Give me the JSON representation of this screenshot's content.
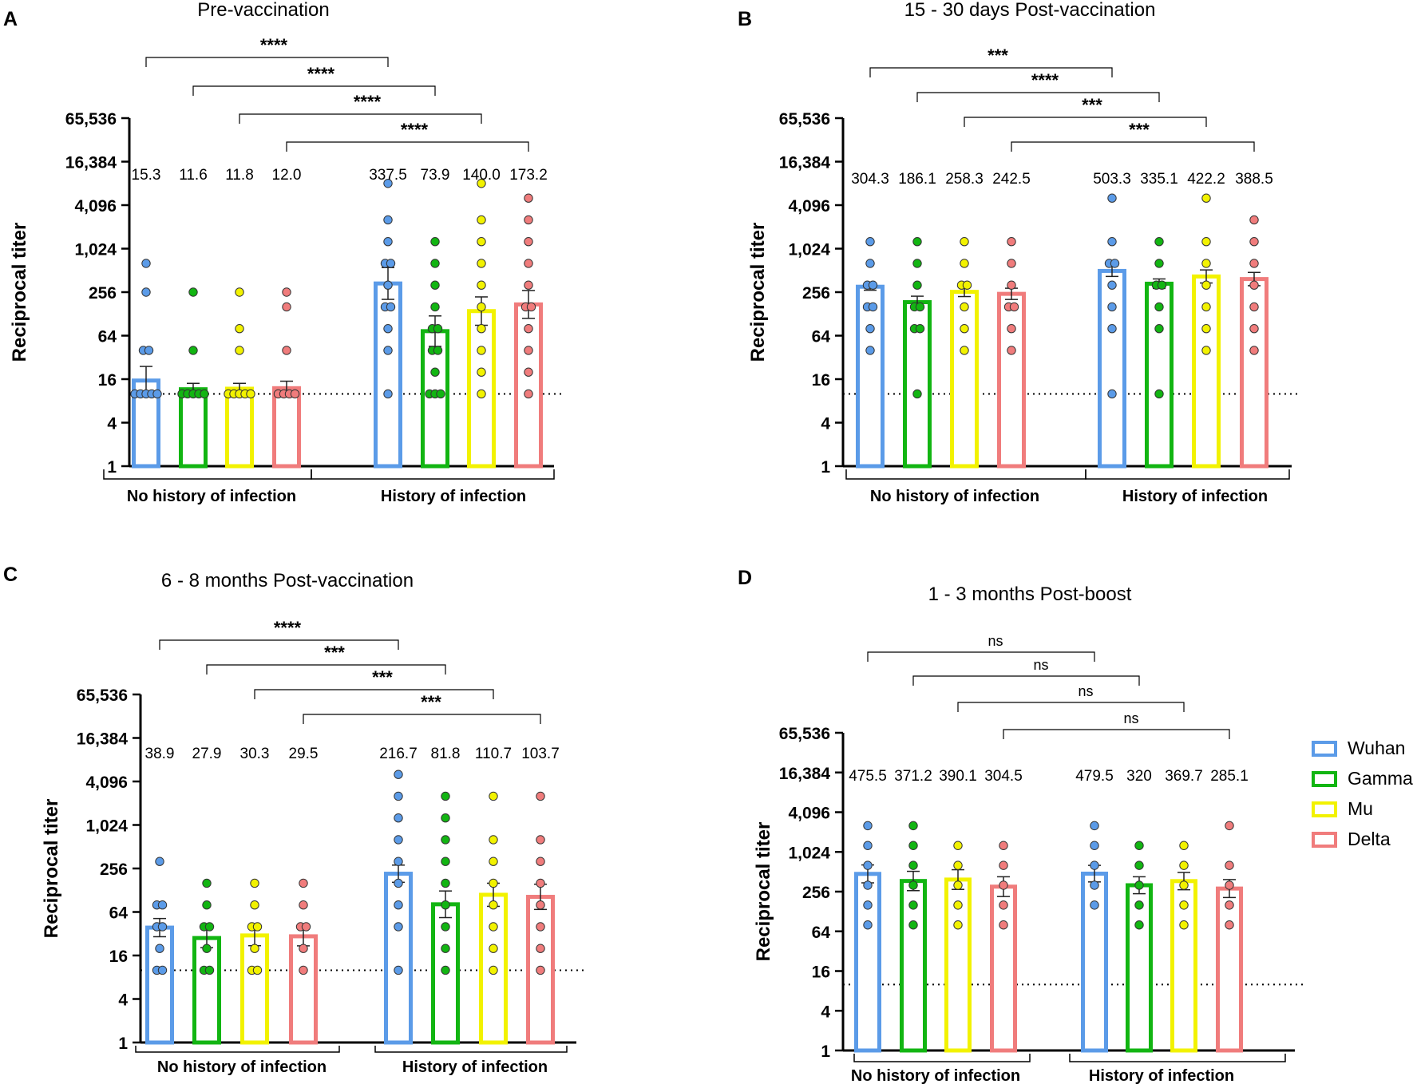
{
  "figure": {
    "panel_labels": [
      "A",
      "B",
      "C",
      "D"
    ],
    "legend": [
      {
        "label": "Wuhan",
        "color": "#5b9be8"
      },
      {
        "label": "Gamma",
        "color": "#12b512"
      },
      {
        "label": "Mu",
        "color": "#f2f200"
      },
      {
        "label": "Delta",
        "color": "#f07c7c"
      }
    ]
  },
  "chart_data": [
    {
      "type": "bar",
      "title": "Pre-vaccination",
      "ylabel": "Reciprocal titer",
      "yscale": "log2",
      "ylim": [
        1,
        65536
      ],
      "yticks": [
        "1",
        "4",
        "16",
        "64",
        "256",
        "1,024",
        "4,096",
        "16,384",
        "65,536"
      ],
      "groups": [
        "No history of infection",
        "History of infection"
      ],
      "series": [
        "Wuhan",
        "Gamma",
        "Mu",
        "Delta"
      ],
      "means": [
        [
          15.3,
          11.6,
          11.8,
          12.0
        ],
        [
          337.5,
          73.9,
          140.0,
          173.2
        ]
      ],
      "mean_labels": [
        [
          "15.3",
          "11.6",
          "11.8",
          "12.0"
        ],
        [
          "337.5",
          "73.9",
          "140.0",
          "173.2"
        ]
      ],
      "error_upper": [
        [
          24,
          14,
          14,
          15
        ],
        [
          560,
          120,
          220,
          270
        ]
      ],
      "points": [
        [
          [
            640,
            256,
            40,
            40,
            10,
            10,
            10,
            10,
            10
          ],
          [
            256,
            40,
            10,
            10,
            10,
            10,
            10
          ],
          [
            256,
            80,
            40,
            10,
            10,
            10,
            10,
            10
          ],
          [
            256,
            160,
            40,
            10,
            10,
            10,
            10
          ]
        ],
        [
          [
            8192,
            2560,
            1280,
            640,
            640,
            320,
            160,
            160,
            80,
            40,
            10
          ],
          [
            1280,
            640,
            320,
            160,
            80,
            80,
            40,
            40,
            20,
            10,
            10,
            10
          ],
          [
            8192,
            2560,
            1280,
            640,
            320,
            160,
            80,
            40,
            20,
            10
          ],
          [
            5120,
            2560,
            1280,
            640,
            320,
            160,
            160,
            80,
            40,
            20,
            10
          ]
        ]
      ],
      "lod": 10,
      "comparisons": [
        "****",
        "****",
        "****",
        "****"
      ]
    },
    {
      "type": "bar",
      "title": "15 - 30 days Post-vaccination",
      "ylabel": "Reciprocal titer",
      "yscale": "log2",
      "ylim": [
        1,
        65536
      ],
      "yticks": [
        "1",
        "4",
        "16",
        "64",
        "256",
        "1,024",
        "4,096",
        "16,384",
        "65,536"
      ],
      "groups": [
        "No history of infection",
        "History of infection"
      ],
      "series": [
        "Wuhan",
        "Gamma",
        "Mu",
        "Delta"
      ],
      "means": [
        [
          304.3,
          186.1,
          258.3,
          242.5
        ],
        [
          503.3,
          335.1,
          422.2,
          388.5
        ]
      ],
      "mean_labels": [
        [
          "304.3",
          "186.1",
          "258.3",
          "242.5"
        ],
        [
          "503.3",
          "335.1",
          "422.2",
          "388.5"
        ]
      ],
      "error_upper": [
        [
          340,
          225,
          300,
          290
        ],
        [
          600,
          390,
          520,
          480
        ]
      ],
      "points": [
        [
          [
            1280,
            640,
            320,
            320,
            160,
            160,
            80,
            40
          ],
          [
            1280,
            640,
            320,
            160,
            160,
            80,
            80,
            10
          ],
          [
            1280,
            640,
            320,
            320,
            160,
            80,
            40
          ],
          [
            1280,
            640,
            320,
            160,
            160,
            80,
            40
          ]
        ],
        [
          [
            5120,
            1280,
            640,
            640,
            320,
            160,
            80,
            10
          ],
          [
            1280,
            640,
            320,
            320,
            160,
            80,
            10
          ],
          [
            5120,
            1280,
            640,
            320,
            160,
            80,
            40
          ],
          [
            2560,
            1280,
            640,
            320,
            160,
            80,
            40
          ]
        ]
      ],
      "lod": 10,
      "comparisons": [
        "***",
        "****",
        "***",
        "***"
      ]
    },
    {
      "type": "bar",
      "title": "6 - 8 months Post-vaccination",
      "ylabel": "Reciprocal titer",
      "yscale": "log2",
      "ylim": [
        1,
        65536
      ],
      "yticks": [
        "1",
        "4",
        "16",
        "64",
        "256",
        "1,024",
        "4,096",
        "16,384",
        "65,536"
      ],
      "groups": [
        "No history of infection",
        "History of infection"
      ],
      "series": [
        "Wuhan",
        "Gamma",
        "Mu",
        "Delta"
      ],
      "means": [
        [
          38.9,
          27.9,
          30.3,
          29.5
        ],
        [
          216.7,
          81.8,
          110.7,
          103.7
        ]
      ],
      "mean_labels": [
        [
          "38.9",
          "27.9",
          "30.3",
          "29.5"
        ],
        [
          "216.7",
          "81.8",
          "110.7",
          "103.7"
        ]
      ],
      "error_upper": [
        [
          52,
          38,
          42,
          40
        ],
        [
          285,
          125,
          160,
          155
        ]
      ],
      "points": [
        [
          [
            320,
            80,
            80,
            40,
            40,
            20,
            10,
            10
          ],
          [
            160,
            80,
            40,
            40,
            20,
            10,
            10
          ],
          [
            160,
            80,
            40,
            40,
            20,
            10,
            10
          ],
          [
            160,
            80,
            40,
            40,
            20,
            10
          ]
        ],
        [
          [
            5120,
            2560,
            1280,
            640,
            320,
            160,
            80,
            40,
            10
          ],
          [
            2560,
            1280,
            640,
            320,
            160,
            80,
            40,
            20,
            10
          ],
          [
            2560,
            640,
            320,
            160,
            80,
            40,
            20,
            10
          ],
          [
            2560,
            640,
            320,
            160,
            80,
            40,
            20,
            10
          ]
        ]
      ],
      "lod": 10,
      "comparisons": [
        "****",
        "***",
        "***",
        "***"
      ]
    },
    {
      "type": "bar",
      "title": "1 - 3 months Post-boost",
      "ylabel": "Reciprocal titer",
      "yscale": "log2",
      "ylim": [
        1,
        65536
      ],
      "yticks": [
        "1",
        "4",
        "16",
        "64",
        "256",
        "1,024",
        "4,096",
        "16,384",
        "65,536"
      ],
      "groups": [
        "No history of infection",
        "History of infection"
      ],
      "series": [
        "Wuhan",
        "Gamma",
        "Mu",
        "Delta"
      ],
      "means": [
        [
          475.5,
          371.2,
          390.1,
          304.5
        ],
        [
          479.5,
          320,
          369.7,
          285.1
        ]
      ],
      "mean_labels": [
        [
          "475.5",
          "371.2",
          "390.1",
          "304.5"
        ],
        [
          "479.5",
          "320",
          "369.7",
          "285.1"
        ]
      ],
      "error_upper": [
        [
          650,
          520,
          550,
          430
        ],
        [
          640,
          430,
          500,
          390
        ]
      ],
      "points": [
        [
          [
            2560,
            1280,
            640,
            320,
            160,
            80
          ],
          [
            2560,
            1280,
            640,
            320,
            160,
            80
          ],
          [
            1280,
            640,
            320,
            160,
            80
          ],
          [
            1280,
            640,
            320,
            160,
            80
          ]
        ],
        [
          [
            2560,
            1280,
            640,
            320,
            160
          ],
          [
            1280,
            640,
            320,
            160,
            80
          ],
          [
            1280,
            640,
            320,
            160,
            80
          ],
          [
            2560,
            640,
            320,
            160,
            80
          ]
        ]
      ],
      "lod": 10,
      "comparisons": [
        "ns",
        "ns",
        "ns",
        "ns"
      ]
    }
  ]
}
